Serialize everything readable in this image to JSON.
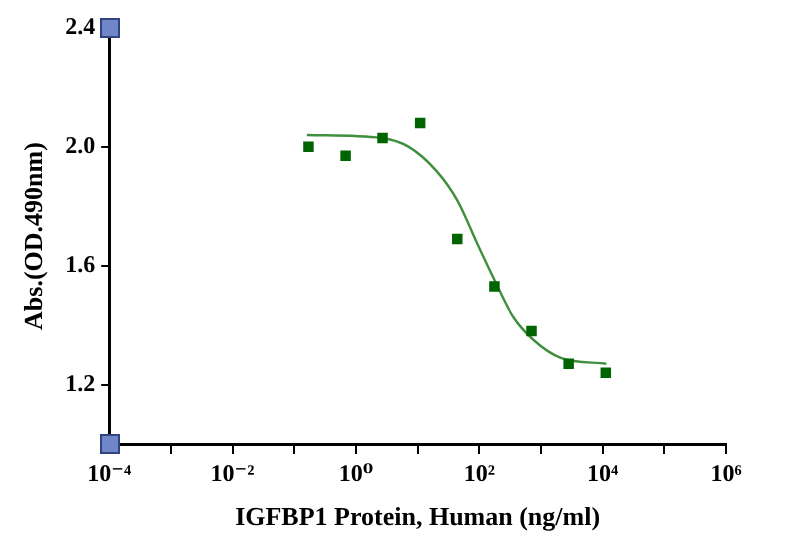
{
  "chart_data": {
    "type": "scatter",
    "xlabel": "IGFBP1 Protein, Human (ng/ml)",
    "ylabel": "Abs.(OD.490nm)",
    "log": "x",
    "xlim": [
      0.0001,
      1000000
    ],
    "xticks": [
      {
        "value": 0.0001,
        "label": "10⁻⁴"
      },
      {
        "value": 0.001,
        "label": null
      },
      {
        "value": 0.01,
        "label": "10⁻²"
      },
      {
        "value": 0.1,
        "label": null
      },
      {
        "value": 1,
        "label": "10⁰"
      },
      {
        "value": 10,
        "label": null
      },
      {
        "value": 100,
        "label": "10²"
      },
      {
        "value": 1000,
        "label": null
      },
      {
        "value": 10000,
        "label": "10⁴"
      },
      {
        "value": 100000,
        "label": null
      },
      {
        "value": 1000000,
        "label": "10⁶"
      }
    ],
    "ylim": [
      1.0,
      2.4
    ],
    "yticks": [
      1.2,
      1.6,
      {
        "value": 2,
        "label": "2.0"
      },
      2.4
    ],
    "grid": false,
    "legend": false,
    "series": [
      {
        "color": "#006400",
        "marker": "square",
        "x": [
          0.17,
          0.68,
          2.7,
          11,
          44,
          176,
          703,
          2812,
          11250
        ],
        "values": [
          2.0,
          1.97,
          2.03,
          2.08,
          1.69,
          1.53,
          1.38,
          1.27,
          1.24
        ]
      },
      {
        "type": "line",
        "color": "#3f8f3f",
        "marker": "none",
        "line_style": "solid",
        "x": [
          0.16,
          2.6,
          7.2,
          20,
          44,
          95,
          178,
          350,
          760,
          2100,
          11500
        ],
        "values": [
          2.04,
          2.03,
          2.0,
          1.92,
          1.82,
          1.67,
          1.55,
          1.43,
          1.35,
          1.29,
          1.27
        ]
      }
    ]
  }
}
